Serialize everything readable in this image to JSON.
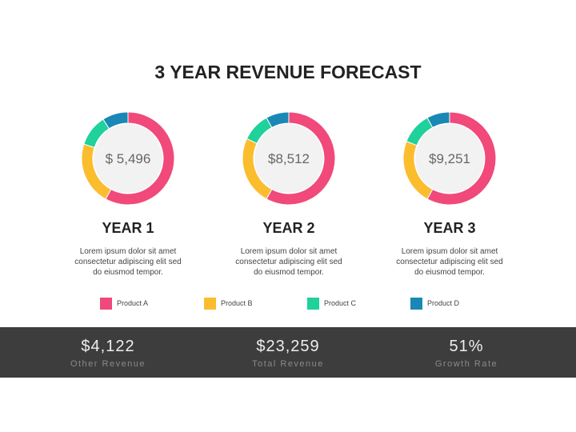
{
  "title": "3 YEAR REVENUE FORECAST",
  "colors": {
    "product_a": "#f0497a",
    "product_b": "#fbbd2e",
    "product_c": "#1fd19a",
    "product_d": "#1a88b4",
    "center": "#f2f2f2",
    "band": "#3d3d3d"
  },
  "chart_data": [
    {
      "type": "pie",
      "style": "donut",
      "title": "YEAR 1",
      "center_label": "$ 5,496",
      "categories": [
        "Product A",
        "Product B",
        "Product C",
        "Product D"
      ],
      "values": [
        58,
        22,
        11,
        9
      ]
    },
    {
      "type": "pie",
      "style": "donut",
      "title": "YEAR 2",
      "center_label": "$8,512",
      "categories": [
        "Product A",
        "Product B",
        "Product C",
        "Product D"
      ],
      "values": [
        58,
        24,
        10,
        8
      ]
    },
    {
      "type": "pie",
      "style": "donut",
      "title": "YEAR 3",
      "center_label": "$9,251",
      "categories": [
        "Product A",
        "Product B",
        "Product C",
        "Product D"
      ],
      "values": [
        58,
        23,
        11,
        8
      ]
    }
  ],
  "columns": [
    {
      "year": "YEAR 1",
      "desc": [
        "Lorem ipsum dolor sit amet",
        "consectetur adipiscing elit sed",
        "do eiusmod tempor."
      ]
    },
    {
      "year": "YEAR 2",
      "desc": [
        "Lorem ipsum dolor sit amet",
        "consectetur adipiscing elit sed",
        "do eiusmod tempor."
      ]
    },
    {
      "year": "YEAR 3",
      "desc": [
        "Lorem ipsum dolor sit amet",
        "consectetur adipiscing elit sed",
        "do eiusmod tempor."
      ]
    }
  ],
  "legend": [
    {
      "label": "Product A",
      "color": "#f0497a"
    },
    {
      "label": "Product B",
      "color": "#fbbd2e"
    },
    {
      "label": "Product C",
      "color": "#1fd19a"
    },
    {
      "label": "Product D",
      "color": "#1a88b4"
    }
  ],
  "stats": [
    {
      "value": "$4,122",
      "label": "Other Revenue"
    },
    {
      "value": "$23,259",
      "label": "Total Revenue"
    },
    {
      "value": "51%",
      "label": "Growth Rate"
    }
  ]
}
